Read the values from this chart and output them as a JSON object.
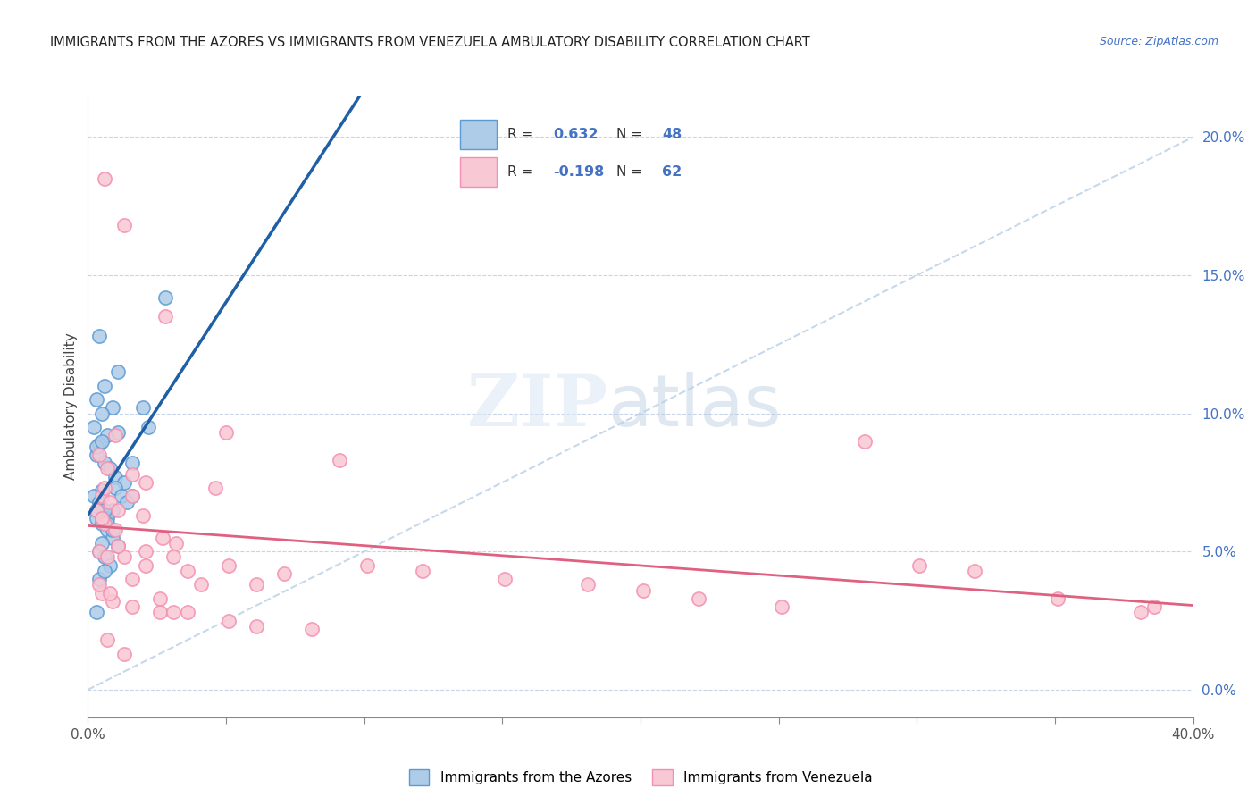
{
  "title": "IMMIGRANTS FROM THE AZORES VS IMMIGRANTS FROM VENEZUELA AMBULATORY DISABILITY CORRELATION CHART",
  "source": "Source: ZipAtlas.com",
  "ylabel": "Ambulatory Disability",
  "x_min": 0.0,
  "x_max": 40.0,
  "y_min": -1.0,
  "y_max": 21.5,
  "right_ytick_vals": [
    0.0,
    5.0,
    10.0,
    15.0,
    20.0
  ],
  "azores_color": "#5b9bd5",
  "azores_fill": "#aecce8",
  "venezuela_color": "#f48fb1",
  "venezuela_fill": "#f8c8d4",
  "trendline_azores_color": "#1f5fa6",
  "trendline_venezuela_color": "#e06080",
  "diagonal_color": "#b8cfe8",
  "watermark_zip": "ZIP",
  "watermark_atlas": "atlas",
  "azores_points": [
    [
      0.4,
      12.8
    ],
    [
      1.1,
      11.5
    ],
    [
      0.6,
      11.0
    ],
    [
      0.3,
      10.5
    ],
    [
      0.9,
      10.2
    ],
    [
      0.5,
      10.0
    ],
    [
      0.2,
      9.5
    ],
    [
      0.7,
      9.2
    ],
    [
      0.4,
      8.9
    ],
    [
      0.3,
      8.5
    ],
    [
      0.6,
      8.2
    ],
    [
      0.8,
      8.0
    ],
    [
      1.0,
      7.7
    ],
    [
      1.3,
      7.5
    ],
    [
      0.5,
      7.2
    ],
    [
      1.6,
      7.0
    ],
    [
      0.4,
      6.8
    ],
    [
      0.9,
      6.5
    ],
    [
      0.7,
      6.2
    ],
    [
      1.1,
      9.3
    ],
    [
      0.3,
      8.8
    ],
    [
      0.5,
      9.0
    ],
    [
      2.0,
      10.2
    ],
    [
      2.8,
      14.2
    ],
    [
      0.2,
      7.0
    ],
    [
      0.4,
      6.8
    ],
    [
      0.6,
      6.5
    ],
    [
      0.3,
      6.2
    ],
    [
      0.5,
      6.0
    ],
    [
      0.7,
      5.8
    ],
    [
      0.9,
      5.5
    ],
    [
      1.1,
      5.2
    ],
    [
      0.4,
      5.0
    ],
    [
      0.6,
      4.8
    ],
    [
      0.8,
      4.5
    ],
    [
      1.0,
      7.3
    ],
    [
      1.2,
      7.0
    ],
    [
      1.4,
      6.8
    ],
    [
      0.3,
      6.5
    ],
    [
      0.5,
      6.2
    ],
    [
      0.7,
      6.0
    ],
    [
      0.9,
      5.8
    ],
    [
      1.6,
      8.2
    ],
    [
      2.2,
      9.5
    ],
    [
      0.4,
      4.0
    ],
    [
      0.6,
      4.3
    ],
    [
      0.3,
      2.8
    ],
    [
      0.5,
      5.3
    ]
  ],
  "venezuela_points": [
    [
      0.6,
      18.5
    ],
    [
      1.3,
      16.8
    ],
    [
      2.8,
      13.5
    ],
    [
      1.0,
      9.2
    ],
    [
      5.0,
      9.3
    ],
    [
      0.4,
      8.5
    ],
    [
      0.7,
      8.0
    ],
    [
      1.6,
      7.8
    ],
    [
      2.1,
      7.5
    ],
    [
      0.5,
      7.0
    ],
    [
      0.8,
      6.8
    ],
    [
      1.1,
      6.5
    ],
    [
      2.0,
      6.3
    ],
    [
      0.6,
      6.0
    ],
    [
      1.0,
      5.8
    ],
    [
      2.7,
      5.5
    ],
    [
      3.2,
      5.3
    ],
    [
      0.4,
      5.0
    ],
    [
      0.7,
      4.8
    ],
    [
      1.3,
      4.8
    ],
    [
      2.1,
      4.5
    ],
    [
      3.6,
      4.3
    ],
    [
      1.6,
      4.0
    ],
    [
      4.1,
      3.8
    ],
    [
      0.5,
      3.5
    ],
    [
      0.9,
      3.2
    ],
    [
      1.6,
      3.0
    ],
    [
      2.6,
      2.8
    ],
    [
      3.6,
      2.8
    ],
    [
      5.1,
      2.5
    ],
    [
      6.1,
      2.3
    ],
    [
      8.1,
      2.2
    ],
    [
      10.1,
      4.5
    ],
    [
      12.1,
      4.3
    ],
    [
      15.1,
      4.0
    ],
    [
      18.1,
      3.8
    ],
    [
      20.1,
      3.6
    ],
    [
      22.1,
      3.3
    ],
    [
      25.1,
      3.0
    ],
    [
      28.1,
      9.0
    ],
    [
      30.1,
      4.5
    ],
    [
      32.1,
      4.3
    ],
    [
      35.1,
      3.3
    ],
    [
      38.1,
      2.8
    ],
    [
      38.6,
      3.0
    ],
    [
      0.3,
      6.5
    ],
    [
      0.5,
      6.2
    ],
    [
      1.1,
      5.2
    ],
    [
      2.1,
      5.0
    ],
    [
      3.1,
      4.8
    ],
    [
      5.1,
      4.5
    ],
    [
      7.1,
      4.2
    ],
    [
      0.6,
      7.3
    ],
    [
      1.6,
      7.0
    ],
    [
      0.4,
      3.8
    ],
    [
      0.8,
      3.5
    ],
    [
      2.6,
      3.3
    ],
    [
      4.6,
      7.3
    ],
    [
      3.1,
      2.8
    ],
    [
      6.1,
      3.8
    ],
    [
      0.7,
      1.8
    ],
    [
      1.3,
      1.3
    ],
    [
      9.1,
      8.3
    ]
  ]
}
